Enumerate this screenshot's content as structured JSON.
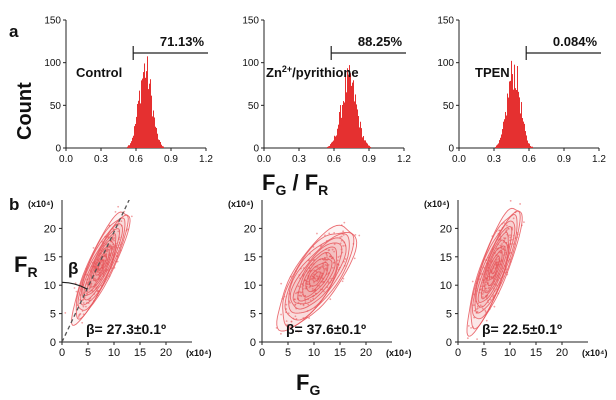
{
  "figure": {
    "panel_a_label": "a",
    "panel_b_label": "b",
    "count_ylabel": "Count",
    "hist_xlabel": {
      "f": "F",
      "g": "G",
      "slash": " / ",
      "f2": "F",
      "r": "R"
    },
    "scatter_ylabel": {
      "f": "F",
      "r": "R"
    },
    "scatter_xlabel": {
      "f": "F",
      "g": "G"
    }
  },
  "colors": {
    "histogram": "#e53030",
    "contour": "#e8555a",
    "axis": "#222222",
    "dash": "#555555"
  },
  "chart_data": [
    {
      "type": "histogram",
      "label": "Control",
      "gate_percent": "71.13%",
      "xlim": [
        0.0,
        1.2
      ],
      "ylim": [
        0,
        150
      ],
      "xticks": [
        "0.0",
        "0.3",
        "0.6",
        "0.9",
        "1.2"
      ],
      "yticks": [
        "0",
        "50",
        "100",
        "150"
      ],
      "peak_x": 0.68,
      "peak_count": 95,
      "spread": 0.055
    },
    {
      "type": "histogram",
      "label_main": "Zn",
      "label_sup": "2+",
      "label_rest": "/pyrithione",
      "gate_percent": "88.25%",
      "xlim": [
        0.0,
        1.2
      ],
      "ylim": [
        0,
        150
      ],
      "xticks": [
        "0.0",
        "0.3",
        "0.6",
        "0.9",
        "1.2"
      ],
      "yticks": [
        "0",
        "50",
        "100",
        "150"
      ],
      "peak_x": 0.73,
      "peak_count": 80,
      "spread": 0.065
    },
    {
      "type": "histogram",
      "label": "TPEN",
      "gate_percent": "0.084%",
      "xlim": [
        0.0,
        1.2
      ],
      "ylim": [
        0,
        150
      ],
      "xticks": [
        "0.0",
        "0.3",
        "0.6",
        "0.9",
        "1.2"
      ],
      "yticks": [
        "0",
        "50",
        "100",
        "150"
      ],
      "peak_x": 0.47,
      "peak_count": 93,
      "spread": 0.055
    },
    {
      "type": "contour",
      "xlim": [
        0,
        25
      ],
      "ylim": [
        0,
        25
      ],
      "xticks": [
        "0",
        "5",
        "10",
        "15",
        "20"
      ],
      "yticks": [
        "0",
        "5",
        "10",
        "15",
        "20"
      ],
      "x_exponent": "(x10⁴)",
      "y_exponent": "(x10⁴)",
      "beta_symbol": "β",
      "beta_text": "β= 27.3±0.1º",
      "center_x": 7.5,
      "center_y": 13.5,
      "angle_deg": 62.7,
      "major": 11,
      "minor": 2.4,
      "show_fit_line": true
    },
    {
      "type": "contour",
      "xlim": [
        0,
        25
      ],
      "ylim": [
        0,
        25
      ],
      "xticks": [
        "0",
        "5",
        "10",
        "15",
        "20"
      ],
      "yticks": [
        "0",
        "5",
        "10",
        "15",
        "20"
      ],
      "x_exponent": "(x10⁴)",
      "y_exponent": "(x10⁴)",
      "beta_text": "β= 37.6±0.1º",
      "center_x": 10.5,
      "center_y": 11.5,
      "angle_deg": 52.4,
      "major": 11,
      "minor": 4.2,
      "show_fit_line": false
    },
    {
      "type": "contour",
      "xlim": [
        0,
        25
      ],
      "ylim": [
        0,
        25
      ],
      "xticks": [
        "0",
        "5",
        "10",
        "15",
        "20"
      ],
      "yticks": [
        "0",
        "5",
        "10",
        "15",
        "20"
      ],
      "x_exponent": "(x10⁴)",
      "y_exponent": "(x10⁴)",
      "beta_text": "β= 22.5±0.1º",
      "center_x": 7.0,
      "center_y": 13.0,
      "angle_deg": 67.5,
      "major": 12,
      "minor": 2.6,
      "show_fit_line": false
    }
  ]
}
